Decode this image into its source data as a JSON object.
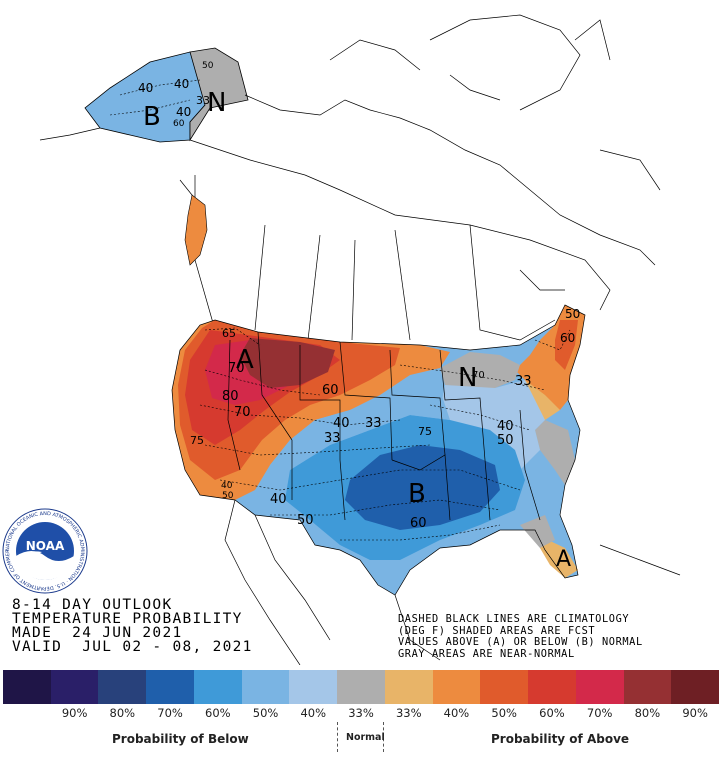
{
  "outlook": {
    "line1": "8-14 DAY OUTLOOK",
    "line2": "TEMPERATURE PROBABILITY",
    "line3": "MADE  24 JUN 2021",
    "line4": "VALID  JUL 02 - 08, 2021"
  },
  "notes": {
    "line1": "DASHED BLACK LINES ARE CLIMATOLOGY",
    "line2": "(DEG F) SHADED AREAS ARE FCST",
    "line3": "VALUES ABOVE (A) OR BELOW (B) NORMAL",
    "line4": "GRAY AREAS ARE NEAR-NORMAL"
  },
  "logo": {
    "text": "NOAA",
    "ring_text": "NATIONAL OCEANIC AND ATMOSPHERIC ADMINISTRATION · U.S. DEPARTMENT OF COMMERCE"
  },
  "map_labels": {
    "alaska_B": "B",
    "alaska_N": "N",
    "alaska_40a": "40",
    "alaska_40b": "40",
    "alaska_40c": "40",
    "alaska_60": "60",
    "alaska_33": "33",
    "alaska_50": "50",
    "west_A": "A",
    "northeast_N": "N",
    "south_B": "B",
    "florida_A": "A",
    "c65": "65",
    "c70a": "70",
    "c80": "80",
    "c70b": "70",
    "c75": "75",
    "c60": "60",
    "c40a": "40",
    "c33a": "33",
    "c33b": "33",
    "c75b": "75",
    "c40b": "40",
    "c50a": "50",
    "c40c": "40",
    "c50b": "50",
    "c60b": "60",
    "c33ne": "33",
    "c70ne": "70",
    "c50ne": "50",
    "c60ne": "60",
    "c40sw": "40",
    "c50sw": "50"
  },
  "legend": {
    "colors": [
      "#1f1547",
      "#2a1f68",
      "#28417b",
      "#1f5fab",
      "#3f9ad8",
      "#7ab4e3",
      "#a4c6e8",
      "#aeaeae",
      "#e8b468",
      "#ed8b3f",
      "#e05b2c",
      "#d63a2f",
      "#d3294a",
      "#953033",
      "#6e1f24"
    ],
    "ticks": [
      "90%",
      "80%",
      "70%",
      "60%",
      "50%",
      "40%",
      "33%",
      "33%",
      "40%",
      "50%",
      "60%",
      "70%",
      "80%",
      "90%"
    ],
    "below_caption": "Probability of Below",
    "normal_caption": "Normal",
    "above_caption": "Probability of Above"
  }
}
